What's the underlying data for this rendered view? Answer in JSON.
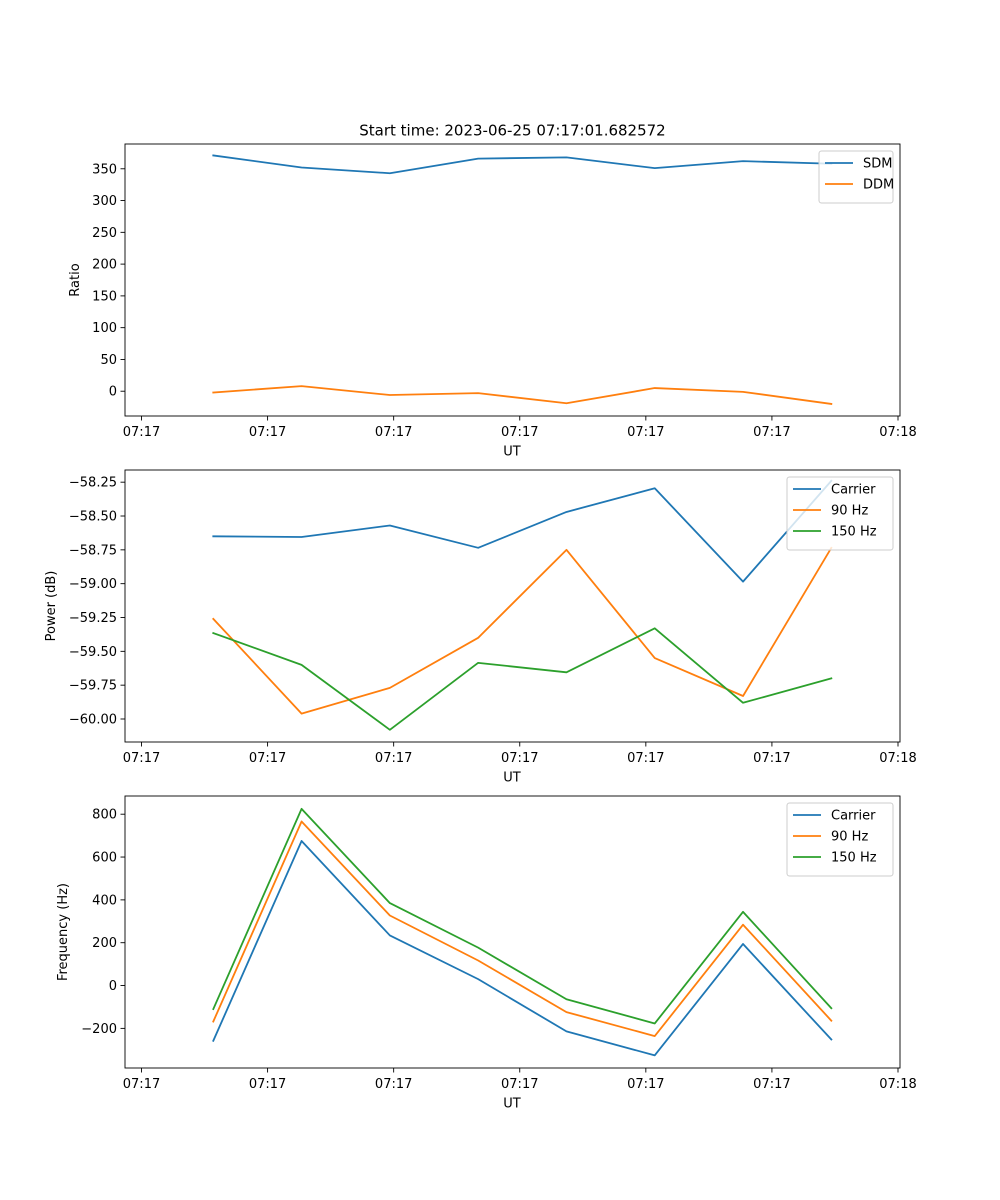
{
  "figure_title": "Start time: 2023-06-25 07:17:01.682572",
  "chart_data": [
    {
      "type": "line",
      "title": "Start time: 2023-06-25 07:17:01.682572",
      "xlabel": "UT",
      "ylabel": "Ratio",
      "x_ticks": [
        "07:17",
        "07:17",
        "07:17",
        "07:17",
        "07:17",
        "07:17",
        "07:18"
      ],
      "y_ticks": [
        0,
        50,
        100,
        150,
        200,
        250,
        300,
        350
      ],
      "ylim": [
        -39,
        389
      ],
      "xlim": [
        -0.24,
        8.45
      ],
      "x": [
        0.75,
        1.74,
        2.73,
        3.72,
        4.71,
        5.7,
        6.69,
        7.68
      ],
      "legend_position": "upper right",
      "series": [
        {
          "name": "SDM",
          "color": "#1f77b4",
          "values": [
            371,
            352,
            343,
            366,
            368,
            351,
            362,
            358
          ]
        },
        {
          "name": "DDM",
          "color": "#ff7f0e",
          "values": [
            -2,
            8,
            -6,
            -3,
            -19,
            5,
            -1,
            -20
          ]
        }
      ]
    },
    {
      "type": "line",
      "title": "",
      "xlabel": "UT",
      "ylabel": "Power (dB)",
      "x_ticks": [
        "07:17",
        "07:17",
        "07:17",
        "07:17",
        "07:17",
        "07:17",
        "07:18"
      ],
      "y_ticks": [
        -60.0,
        -59.75,
        -59.5,
        -59.25,
        -59.0,
        -58.75,
        -58.5,
        -58.25
      ],
      "y_tick_labels": [
        "−60.00",
        "−59.75",
        "−59.50",
        "−59.25",
        "−59.00",
        "−58.75",
        "−58.50",
        "−58.25"
      ],
      "ylim": [
        -60.17,
        -58.16
      ],
      "xlim": [
        -0.24,
        8.45
      ],
      "x": [
        0.75,
        1.74,
        2.73,
        3.72,
        4.71,
        5.7,
        6.69,
        7.68
      ],
      "legend_position": "upper right",
      "series": [
        {
          "name": "Carrier",
          "color": "#1f77b4",
          "values": [
            -58.65,
            -58.655,
            -58.57,
            -58.735,
            -58.47,
            -58.295,
            -58.985,
            -58.24
          ]
        },
        {
          "name": "90 Hz",
          "color": "#ff7f0e",
          "values": [
            -59.26,
            -59.96,
            -59.77,
            -59.4,
            -58.75,
            -59.55,
            -59.83,
            -58.735
          ]
        },
        {
          "name": "150 Hz",
          "color": "#2ca02c",
          "values": [
            -59.365,
            -59.6,
            -60.08,
            -59.585,
            -59.655,
            -59.33,
            -59.88,
            -59.7
          ]
        }
      ]
    },
    {
      "type": "line",
      "title": "",
      "xlabel": "UT",
      "ylabel": "Frequency (Hz)",
      "x_ticks": [
        "07:17",
        "07:17",
        "07:17",
        "07:17",
        "07:17",
        "07:17",
        "07:18"
      ],
      "y_ticks": [
        -200,
        0,
        200,
        400,
        600,
        800
      ],
      "y_tick_labels": [
        "−200",
        "0",
        "200",
        "400",
        "600",
        "800"
      ],
      "ylim": [
        -385,
        885
      ],
      "xlim": [
        -0.24,
        8.45
      ],
      "x": [
        0.75,
        1.74,
        2.73,
        3.72,
        4.71,
        5.7,
        6.69,
        7.68
      ],
      "legend_position": "upper right",
      "series": [
        {
          "name": "Carrier",
          "color": "#1f77b4",
          "values": [
            -258,
            675,
            234,
            30,
            -214,
            -326,
            194,
            -252
          ]
        },
        {
          "name": "90 Hz",
          "color": "#ff7f0e",
          "values": [
            -168,
            766,
            327,
            117,
            -124,
            -236,
            284,
            -164
          ]
        },
        {
          "name": "150 Hz",
          "color": "#2ca02c",
          "values": [
            -110,
            825,
            385,
            177,
            -64,
            -177,
            344,
            -106
          ]
        }
      ]
    }
  ]
}
